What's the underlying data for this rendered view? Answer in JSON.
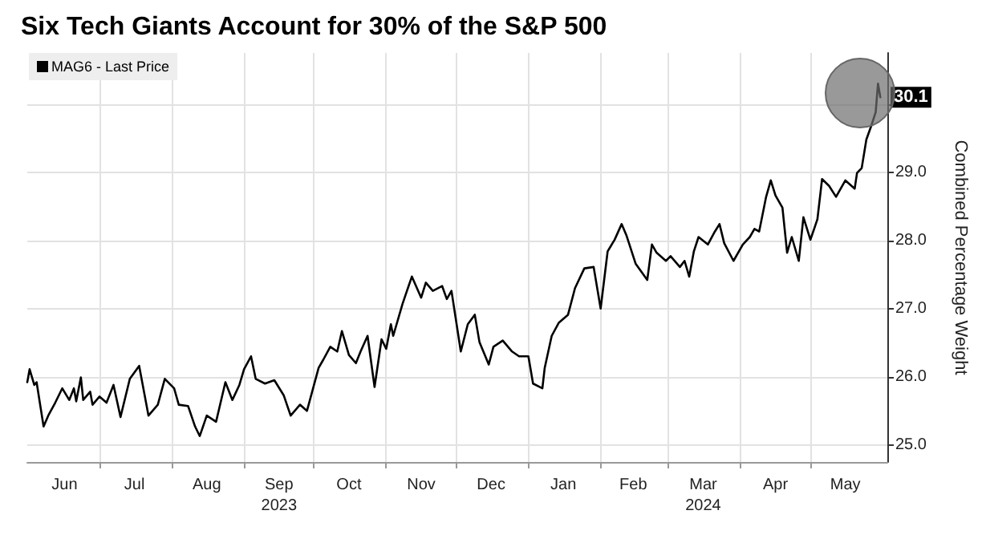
{
  "chart_data": {
    "type": "line",
    "title": "Six Tech Giants Account for 30% of the S&P 500",
    "ylabel": "Combined Percentage Weight",
    "x": [
      "2023-05-31",
      "2023-06-01",
      "2023-06-03",
      "2023-06-04",
      "2023-06-07",
      "2023-06-09",
      "2023-06-12",
      "2023-06-15",
      "2023-06-18",
      "2023-06-20",
      "2023-06-21",
      "2023-06-23",
      "2023-06-24",
      "2023-06-27",
      "2023-06-28",
      "2023-07-01",
      "2023-07-04",
      "2023-07-07",
      "2023-07-10",
      "2023-07-14",
      "2023-07-18",
      "2023-07-22",
      "2023-07-26",
      "2023-07-29",
      "2023-08-02",
      "2023-08-04",
      "2023-08-08",
      "2023-08-11",
      "2023-08-13",
      "2023-08-16",
      "2023-08-20",
      "2023-08-24",
      "2023-08-27",
      "2023-08-30",
      "2023-09-01",
      "2023-09-04",
      "2023-09-06",
      "2023-09-10",
      "2023-09-14",
      "2023-09-18",
      "2023-09-21",
      "2023-09-25",
      "2023-09-28",
      "2023-10-03",
      "2023-10-05",
      "2023-10-08",
      "2023-10-11",
      "2023-10-13",
      "2023-10-16",
      "2023-10-19",
      "2023-10-21",
      "2023-10-24",
      "2023-10-27",
      "2023-10-30",
      "2023-11-01",
      "2023-11-03",
      "2023-11-04",
      "2023-11-08",
      "2023-11-12",
      "2023-11-16",
      "2023-11-18",
      "2023-11-21",
      "2023-11-25",
      "2023-11-27",
      "2023-11-29",
      "2023-12-03",
      "2023-12-06",
      "2023-12-09",
      "2023-12-11",
      "2023-12-15",
      "2023-12-17",
      "2023-12-21",
      "2023-12-25",
      "2023-12-28",
      "2024-01-01",
      "2024-01-03",
      "2024-01-07",
      "2024-01-08",
      "2024-01-11",
      "2024-01-14",
      "2024-01-18",
      "2024-01-21",
      "2024-01-25",
      "2024-01-29",
      "2024-02-01",
      "2024-02-04",
      "2024-02-07",
      "2024-02-10",
      "2024-02-12",
      "2024-02-16",
      "2024-02-21",
      "2024-02-23",
      "2024-02-25",
      "2024-02-29",
      "2024-03-02",
      "2024-03-06",
      "2024-03-08",
      "2024-03-10",
      "2024-03-12",
      "2024-03-14",
      "2024-03-18",
      "2024-03-21",
      "2024-03-23",
      "2024-03-25",
      "2024-03-29",
      "2024-04-02",
      "2024-04-05",
      "2024-04-07",
      "2024-04-09",
      "2024-04-12",
      "2024-04-14",
      "2024-04-16",
      "2024-04-19",
      "2024-04-21",
      "2024-04-23",
      "2024-04-26",
      "2024-04-28",
      "2024-05-01",
      "2024-05-04",
      "2024-05-06",
      "2024-05-09",
      "2024-05-12",
      "2024-05-16",
      "2024-05-20",
      "2024-05-21",
      "2024-05-23",
      "2024-05-25",
      "2024-05-27",
      "2024-05-29",
      "2024-05-30",
      "2024-05-31"
    ],
    "series": [
      {
        "name": "MAG6 - Last Price",
        "color": "#000000",
        "values": [
          25.92,
          26.11,
          25.88,
          25.92,
          25.27,
          25.43,
          25.62,
          25.83,
          25.66,
          25.83,
          25.64,
          25.99,
          25.66,
          25.78,
          25.59,
          25.71,
          25.62,
          25.88,
          25.41,
          25.97,
          26.16,
          25.43,
          25.59,
          25.97,
          25.83,
          25.59,
          25.57,
          25.27,
          25.13,
          25.43,
          25.34,
          25.92,
          25.66,
          25.88,
          26.11,
          26.3,
          25.97,
          25.9,
          25.95,
          25.73,
          25.43,
          25.59,
          25.5,
          26.13,
          26.25,
          26.44,
          26.37,
          26.67,
          26.32,
          26.2,
          26.37,
          26.6,
          25.85,
          26.55,
          26.41,
          26.77,
          26.6,
          27.07,
          27.47,
          27.16,
          27.38,
          27.26,
          27.33,
          27.14,
          27.26,
          26.37,
          26.77,
          26.91,
          26.51,
          26.18,
          26.44,
          26.53,
          26.37,
          26.3,
          26.3,
          25.9,
          25.83,
          26.13,
          26.6,
          26.79,
          26.91,
          27.3,
          27.59,
          27.61,
          27.0,
          27.84,
          28.01,
          28.24,
          28.08,
          27.66,
          27.42,
          27.94,
          27.82,
          27.7,
          27.77,
          27.61,
          27.7,
          27.47,
          27.84,
          28.05,
          27.94,
          28.13,
          28.24,
          27.96,
          27.7,
          27.94,
          28.05,
          28.17,
          28.13,
          28.64,
          28.88,
          28.66,
          28.48,
          27.82,
          28.05,
          27.7,
          28.34,
          28.01,
          28.31,
          28.9,
          28.8,
          28.64,
          28.88,
          28.76,
          28.99,
          29.06,
          29.48,
          29.67,
          29.88,
          30.3,
          30.1
        ]
      }
    ],
    "xlim": [
      "2023-05-31",
      "2024-06-03"
    ],
    "xticks": [
      {
        "value": "2023-06-16",
        "label": "Jun"
      },
      {
        "value": "2023-07-01",
        "label": null
      },
      {
        "value": "2023-07-16",
        "label": "Jul"
      },
      {
        "value": "2023-08-01",
        "label": null
      },
      {
        "value": "2023-08-16",
        "label": "Aug"
      },
      {
        "value": "2023-09-01",
        "label": null
      },
      {
        "value": "2023-09-16",
        "label": "Sep\n2023"
      },
      {
        "value": "2023-10-01",
        "label": null
      },
      {
        "value": "2023-10-16",
        "label": "Oct"
      },
      {
        "value": "2023-11-01",
        "label": null
      },
      {
        "value": "2023-11-16",
        "label": "Nov"
      },
      {
        "value": "2023-12-01",
        "label": null
      },
      {
        "value": "2023-12-16",
        "label": "Dec"
      },
      {
        "value": "2024-01-01",
        "label": null
      },
      {
        "value": "2024-01-16",
        "label": "Jan"
      },
      {
        "value": "2024-02-01",
        "label": null
      },
      {
        "value": "2024-02-15",
        "label": "Feb"
      },
      {
        "value": "2024-03-01",
        "label": null
      },
      {
        "value": "2024-03-16",
        "label": "Mar\n2024"
      },
      {
        "value": "2024-04-01",
        "label": null
      },
      {
        "value": "2024-04-16",
        "label": "Apr"
      },
      {
        "value": "2024-05-01",
        "label": null
      },
      {
        "value": "2024-05-16",
        "label": "May"
      }
    ],
    "ylim": [
      24.75,
      30.75
    ],
    "yticks": [
      {
        "value": 25,
        "label": "25.0"
      },
      {
        "value": 26,
        "label": "26.0"
      },
      {
        "value": 27,
        "label": "27.0"
      },
      {
        "value": 28,
        "label": "28.0"
      },
      {
        "value": 29,
        "label": "29.0"
      },
      {
        "value": 30,
        "label": null
      }
    ],
    "annotations": [
      {
        "text": "30.1",
        "x": "2024-05-31",
        "y": 30.1
      }
    ],
    "grid": true,
    "legend": "top left",
    "marker": "none",
    "line_style": "solid"
  }
}
